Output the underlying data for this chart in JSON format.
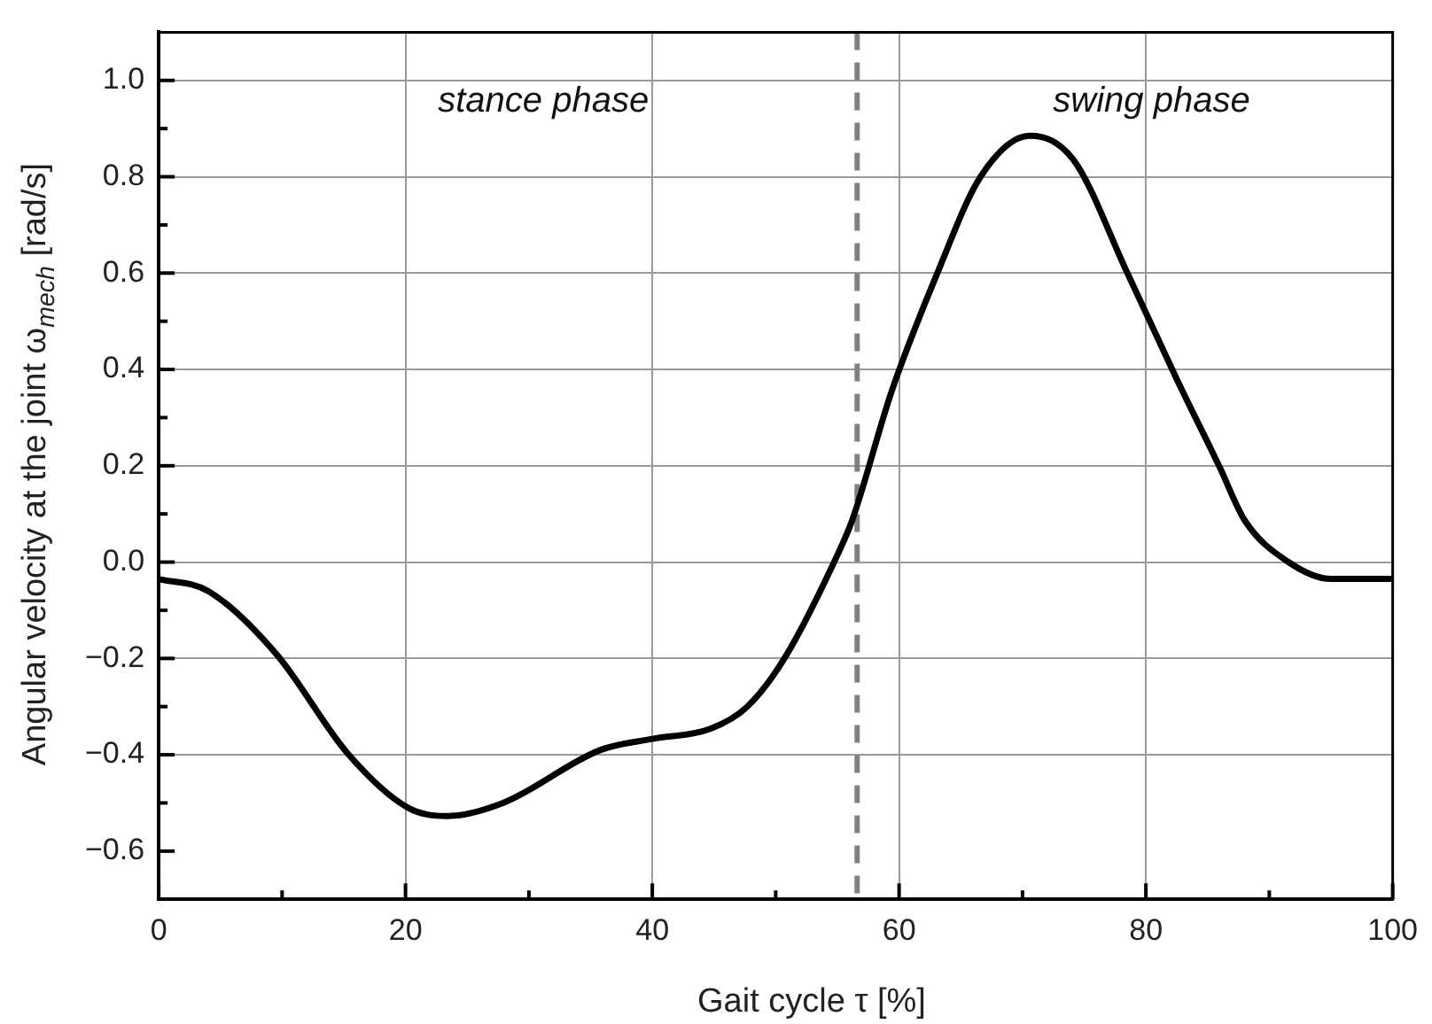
{
  "chart_data": {
    "type": "line",
    "xlabel": "Gait cycle  τ  [%]",
    "ylabel": "Angular velocity at the joint  ω$_{mech}$  [rad/s]",
    "x": [
      0,
      4.0,
      9.5,
      15.4,
      20.2,
      23.4,
      27.9,
      35.8,
      40.0,
      44.7,
      47.7,
      50.7,
      55.2,
      56.2,
      59.4,
      63.1,
      66.6,
      70.6,
      74.1,
      78.5,
      82.5,
      86.0,
      88.0,
      91.5,
      95.0,
      100
    ],
    "series": [
      {
        "color": "#000000",
        "values": [
          -0.035,
          -0.06,
          -0.19,
          -0.4,
          -0.51,
          -0.527,
          -0.5,
          -0.39,
          -0.367,
          -0.346,
          -0.3,
          -0.2,
          0.026,
          0.087,
          0.355,
          0.6,
          0.8,
          0.885,
          0.836,
          0.6,
          0.38,
          0.196,
          0.087,
          0.001,
          -0.035,
          -0.035
        ]
      }
    ],
    "xlim": [
      0,
      100
    ],
    "xticks": [
      0,
      {
        "value": 10,
        "label": null
      },
      20,
      {
        "value": 30,
        "label": null
      },
      40,
      {
        "value": 50,
        "label": null
      },
      60,
      {
        "value": 70,
        "label": null
      },
      80,
      {
        "value": 90,
        "label": null
      },
      100
    ],
    "ylim": [
      -0.7,
      1.1
    ],
    "yticks": [
      {
        "value": -0.6,
        "label": "−0.6"
      },
      {
        "value": -0.5,
        "label": null
      },
      {
        "value": -0.4,
        "label": "−0.4"
      },
      {
        "value": -0.3,
        "label": null
      },
      {
        "value": -0.2,
        "label": "−0.2"
      },
      {
        "value": -0.1,
        "label": null
      },
      {
        "value": 0,
        "label": "0.0"
      },
      {
        "value": 0.1,
        "label": null
      },
      {
        "value": 0.2,
        "label": "0.2"
      },
      {
        "value": 0.3,
        "label": null
      },
      {
        "value": 0.4,
        "label": "0.4"
      },
      {
        "value": 0.5,
        "label": null
      },
      {
        "value": 0.6,
        "label": "0.6"
      },
      {
        "value": 0.7,
        "label": null
      },
      {
        "value": 0.8,
        "label": "0.8"
      },
      {
        "value": 0.9,
        "label": null
      },
      {
        "value": 1.0,
        "label": "1.0"
      }
    ],
    "ref_lines": [
      {
        "axis": "x",
        "value": 56.6,
        "color": "#808080",
        "line_style": "dashed"
      }
    ],
    "annotations": [
      "stance phase",
      "swing phase"
    ],
    "grid": true,
    "legend": false,
    "marker": "none",
    "line_style": "solid"
  }
}
